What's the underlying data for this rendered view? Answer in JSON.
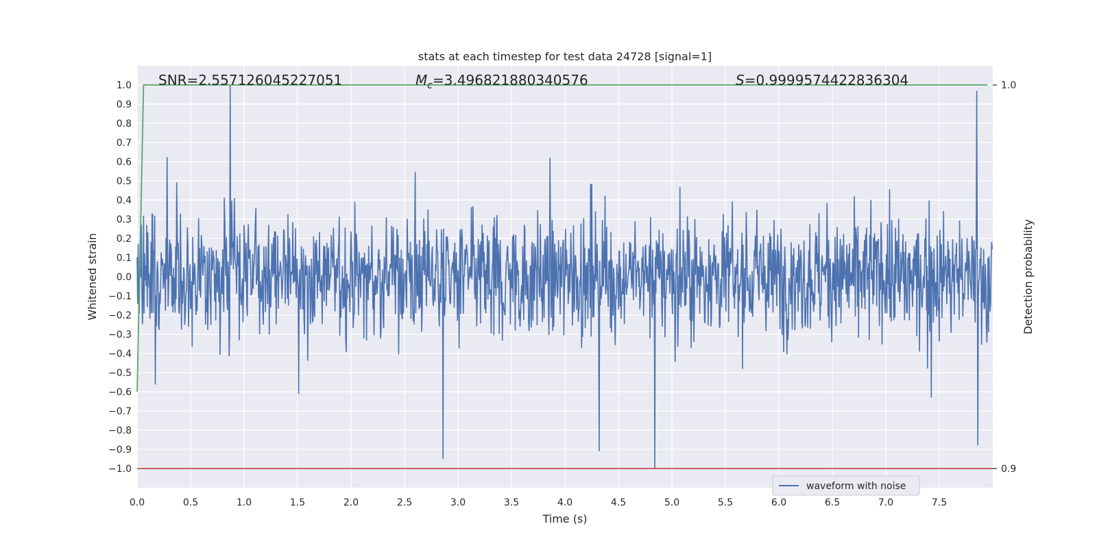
{
  "chart_data": {
    "type": "line",
    "title": "stats at each timestep for test data 24728 [signal=1]",
    "xlabel": "Time (s)",
    "ylabel": "Whitened strain",
    "y2label": "Detection probability",
    "xlim": [
      0,
      8
    ],
    "ylim": [
      -1.1,
      1.1
    ],
    "y2lim": [
      0.9,
      1.0
    ],
    "x_ticks": [
      "0.0",
      "0.5",
      "1.0",
      "1.5",
      "2.0",
      "2.5",
      "3.0",
      "3.5",
      "4.0",
      "4.5",
      "5.0",
      "5.5",
      "6.0",
      "6.5",
      "7.0",
      "7.5"
    ],
    "y_ticks": [
      "1.0",
      "0.9",
      "0.8",
      "0.7",
      "0.6",
      "0.5",
      "0.4",
      "0.3",
      "0.2",
      "0.1",
      "0.0",
      "−0.1",
      "−0.2",
      "−0.3",
      "−0.4",
      "−0.5",
      "−0.6",
      "−0.7",
      "−0.8",
      "−0.9",
      "−1.0"
    ],
    "y2_ticks": [
      "1.0",
      "0.9"
    ],
    "grid": true,
    "legend": {
      "entries": [
        "waveform with noise"
      ],
      "placement": "lower-center-right"
    },
    "annotations": {
      "snr": "SNR=2.557126045227051",
      "mc_symbol": "M",
      "mc_sub": "c",
      "mc_value": "=3.496821880340576",
      "s_symbol": "S",
      "s_value": "=0.9999574422836304"
    },
    "series": [
      {
        "name": "waveform with noise",
        "axis": "left",
        "color": "#4c72b0",
        "x_range": [
          0,
          8
        ],
        "sample_count": 1600,
        "amplitude_typical": 0.4,
        "extremes": [
          {
            "x": 0.87,
            "y": 1.0
          },
          {
            "x": 4.84,
            "y": -1.0
          },
          {
            "x": 2.86,
            "y": -0.95
          },
          {
            "x": 4.32,
            "y": -0.91
          },
          {
            "x": 7.85,
            "y": 0.97
          },
          {
            "x": 7.86,
            "y": -0.88
          }
        ]
      },
      {
        "name": "detection probability",
        "axis": "right",
        "color": "#55a868",
        "x": [
          0.0,
          0.06,
          7.95
        ],
        "y": [
          0.92,
          1.0,
          1.0
        ]
      },
      {
        "name": "threshold",
        "axis": "right",
        "color": "#c44e52",
        "x": [
          0.0,
          8.0
        ],
        "y": [
          0.9,
          0.9
        ]
      }
    ]
  }
}
